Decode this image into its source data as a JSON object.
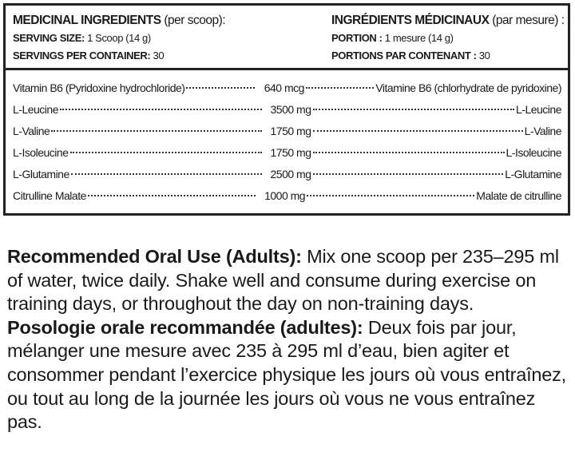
{
  "en": {
    "title_bold": "MEDICINAL INGREDIENTS",
    "title_rest": " (per scoop):",
    "serving_label": "SERVING SIZE:",
    "serving_value": " 1 Scoop (14 g)",
    "servings_label": "SERVINGS PER CONTAINER:",
    "servings_value": " 30"
  },
  "fr": {
    "title_bold": "INGRÉDIENTS MÉDICINAUX",
    "title_rest": " (par mesure) :",
    "serving_label": "PORTION :",
    "serving_value": " 1 mesure (14 g)",
    "servings_label": "PORTIONS PAR CONTENANT :",
    "servings_value": " 30"
  },
  "ingredients": [
    {
      "en": "Vitamin B6 (Pyridoxine hydrochloride)",
      "amount": "640 mcg",
      "fr": "Vitamine B6 (chlorhydrate de pyridoxine)"
    },
    {
      "en": "L-Leucine",
      "amount": "3500 mg",
      "fr": "L-Leucine"
    },
    {
      "en": "L-Valine",
      "amount": "1750 mg",
      "fr": "L-Valine"
    },
    {
      "en": "L-Isoleucine",
      "amount": "1750 mg",
      "fr": "L-Isoleucine"
    },
    {
      "en": "L-Glutamine",
      "amount": "2500 mg",
      "fr": "L-Glutamine"
    },
    {
      "en": "Citrulline Malate",
      "amount": "1000 mg",
      "fr": "Malate de citrulline"
    }
  ],
  "directions": {
    "en_heading": "Recommended Oral Use (Adults):",
    "en_text": " Mix one scoop per 235–295 ml of water, twice daily. Shake well and consume during exercise on training days, or throughout the day on non-training days.",
    "fr_heading": "Posologie orale recommandée (adultes):",
    "fr_text": " Deux fois par jour, mélanger une mesure avec 235 à 295 ml d’eau, bien agiter et consommer pendant l’exercice physique les jours où vous entraînez, ou tout au long de la journée les jours où vous ne vous entraînez pas."
  }
}
